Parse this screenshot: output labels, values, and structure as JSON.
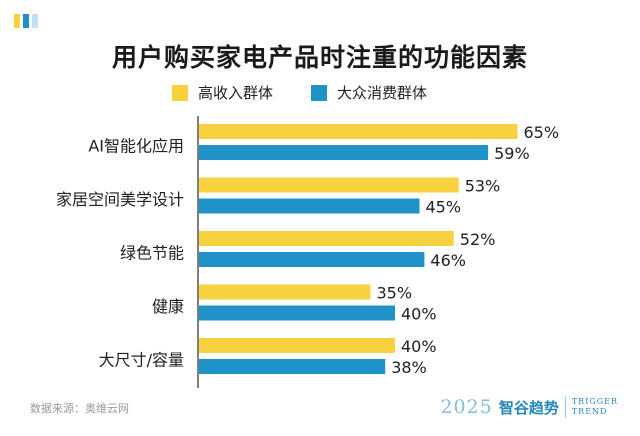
{
  "chart_data": {
    "type": "bar",
    "title": "用户购买家电产品时注重的功能因素",
    "categories": [
      "AI智能化应用",
      "家居空间美学设计",
      "绿色节能",
      "健康",
      "大尺寸/容量"
    ],
    "series": [
      {
        "name": "高收入群体",
        "values": [
          65,
          53,
          52,
          35,
          40
        ],
        "labels": [
          "65%",
          "53%",
          "52%",
          "35%",
          "40%"
        ],
        "color": "#f7d23e"
      },
      {
        "name": "大众消费群体",
        "values": [
          59,
          45,
          46,
          40,
          38
        ],
        "labels": [
          "59%",
          "45%",
          "46%",
          "40%",
          "38%"
        ],
        "color": "#1f93c7"
      }
    ],
    "orientation": "horizontal",
    "xlim": [
      0,
      100
    ],
    "legend_position": "top",
    "grid": false
  },
  "source": "数据来源：奥维云网",
  "brand": {
    "year": "2025",
    "name": "智谷趋势",
    "en_line1": "TRIGGER",
    "en_line2": "TREND"
  },
  "colors": {
    "corner": [
      "#f7d23e",
      "#1f93c7",
      "#bfe1f1"
    ],
    "axis": "#555555"
  }
}
